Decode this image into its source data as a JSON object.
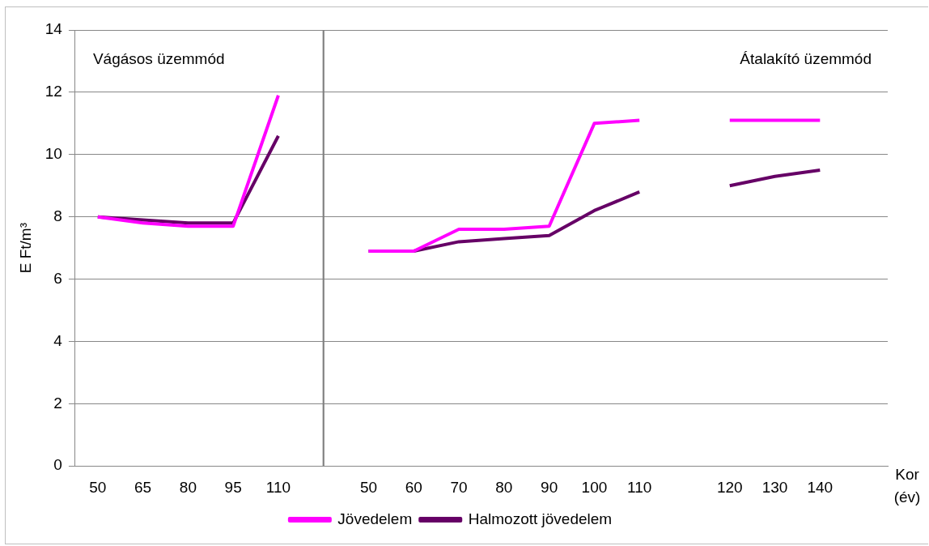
{
  "chart_data": {
    "type": "line",
    "ylabel": "E Ft/m³",
    "xlabel": "Kor (év)",
    "categories": [
      "50",
      "65",
      "80",
      "95",
      "110",
      null,
      "50",
      "60",
      "70",
      "80",
      "90",
      "100",
      "110",
      null,
      "120",
      "130",
      "140",
      null
    ],
    "series": [
      {
        "name": "Jövedelem",
        "color": "#ff00ff",
        "values": [
          8,
          7.8,
          7.7,
          7.7,
          11.9,
          null,
          6.9,
          6.9,
          7.6,
          7.6,
          7.7,
          11.0,
          11.1,
          null,
          11.1,
          11.1,
          11.1,
          null
        ]
      },
      {
        "name": "Halmozott jövedelem",
        "color": "#660066",
        "values": [
          8,
          7.9,
          7.8,
          7.8,
          10.6,
          null,
          6.9,
          6.9,
          7.2,
          7.3,
          7.4,
          8.2,
          8.8,
          null,
          9.0,
          9.3,
          9.5,
          null
        ]
      },
      {
        "type": "bar",
        "color": "#808080",
        "values": [
          null,
          null,
          null,
          null,
          null,
          14,
          null,
          null,
          null,
          null,
          null,
          null,
          null,
          null,
          null,
          null,
          null,
          null
        ]
      }
    ],
    "annotations": [
      "Vágásos üzemmód",
      "Átalakító üzemmód"
    ],
    "ylim": [
      0,
      14
    ],
    "yticks": [
      0,
      2,
      4,
      6,
      8,
      10,
      12,
      14
    ],
    "grid": "y",
    "legend": "bottom",
    "marker": "none",
    "line_style": "solid"
  }
}
